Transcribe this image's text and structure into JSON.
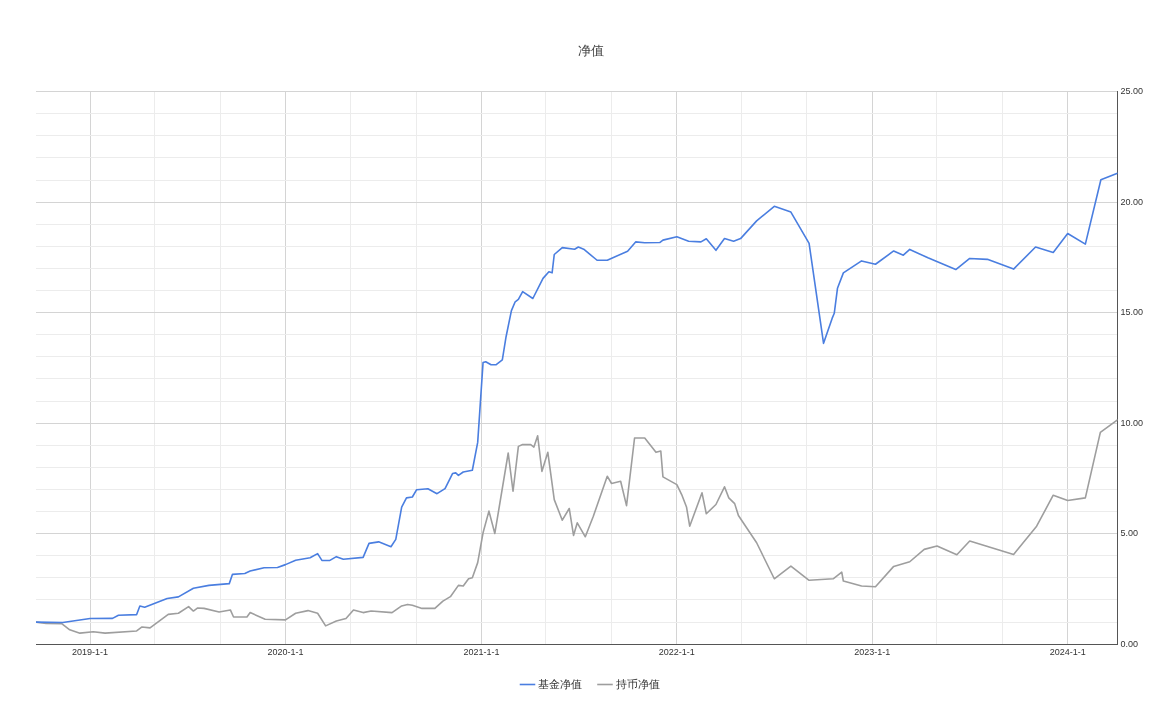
{
  "chart_data": {
    "type": "line",
    "title": "净值",
    "legend": "bottom",
    "grid": true,
    "marker": "none",
    "line_style": "solid",
    "xlim": [
      "2018-09-22",
      "2024-04-03"
    ],
    "xticks": [
      {
        "value": "2019-01-01",
        "label": "2019-1-1"
      },
      {
        "value": "2019-05-01",
        "label": null
      },
      {
        "value": "2019-09-01",
        "label": null
      },
      {
        "value": "2020-01-01",
        "label": "2020-1-1"
      },
      {
        "value": "2020-05-01",
        "label": null
      },
      {
        "value": "2020-09-01",
        "label": null
      },
      {
        "value": "2021-01-01",
        "label": "2021-1-1"
      },
      {
        "value": "2021-05-01",
        "label": null
      },
      {
        "value": "2021-09-01",
        "label": null
      },
      {
        "value": "2022-01-01",
        "label": "2022-1-1"
      },
      {
        "value": "2022-05-01",
        "label": null
      },
      {
        "value": "2022-09-01",
        "label": null
      },
      {
        "value": "2023-01-01",
        "label": "2023-1-1"
      },
      {
        "value": "2023-05-01",
        "label": null
      },
      {
        "value": "2023-09-01",
        "label": null
      },
      {
        "value": "2024-01-01",
        "label": "2024-1-1"
      }
    ],
    "ylim": [
      0,
      25
    ],
    "yticks": [
      {
        "value": 0,
        "label": "0.00"
      },
      {
        "value": 1,
        "label": null
      },
      {
        "value": 2,
        "label": null
      },
      {
        "value": 3,
        "label": null
      },
      {
        "value": 4,
        "label": null
      },
      {
        "value": 5,
        "label": "5.00"
      },
      {
        "value": 6,
        "label": null
      },
      {
        "value": 7,
        "label": null
      },
      {
        "value": 8,
        "label": null
      },
      {
        "value": 9,
        "label": null
      },
      {
        "value": 10,
        "label": "10.00"
      },
      {
        "value": 11,
        "label": null
      },
      {
        "value": 12,
        "label": null
      },
      {
        "value": 13,
        "label": null
      },
      {
        "value": 14,
        "label": null
      },
      {
        "value": 15,
        "label": "15.00"
      },
      {
        "value": 16,
        "label": null
      },
      {
        "value": 17,
        "label": null
      },
      {
        "value": 18,
        "label": null
      },
      {
        "value": 19,
        "label": null
      },
      {
        "value": 20,
        "label": "20.00"
      },
      {
        "value": 21,
        "label": null
      },
      {
        "value": 22,
        "label": null
      },
      {
        "value": 23,
        "label": null
      },
      {
        "value": 24,
        "label": null
      },
      {
        "value": 25,
        "label": "25.00"
      }
    ],
    "series": [
      {
        "name": "基金净值",
        "color": "#4a7ee0",
        "x": [
          "2018-09-22",
          "2018-11-11",
          "2019-01-01",
          "2019-02-12",
          "2019-02-23",
          "2019-03-29",
          "2019-04-04",
          "2019-04-13",
          "2019-05-25",
          "2019-06-15",
          "2019-07-13",
          "2019-08-11",
          "2019-09-18",
          "2019-09-24",
          "2019-10-17",
          "2019-10-27",
          "2019-11-22",
          "2019-12-17",
          "2020-01-01",
          "2020-01-20",
          "2020-02-16",
          "2020-03-01",
          "2020-03-09",
          "2020-03-24",
          "2020-04-05",
          "2020-04-18",
          "2020-05-25",
          "2020-06-05",
          "2020-06-23",
          "2020-07-16",
          "2020-07-25",
          "2020-08-05",
          "2020-08-14",
          "2020-08-25",
          "2020-09-02",
          "2020-09-23",
          "2020-10-10",
          "2020-10-25",
          "2020-11-08",
          "2020-11-14",
          "2020-11-19",
          "2020-11-28",
          "2020-12-15",
          "2020-12-25",
          "2021-01-04",
          "2021-01-09",
          "2021-01-19",
          "2021-01-28",
          "2021-02-09",
          "2021-02-16",
          "2021-02-26",
          "2021-03-05",
          "2021-03-11",
          "2021-03-19",
          "2021-04-07",
          "2021-04-26",
          "2021-05-07",
          "2021-05-13",
          "2021-05-17",
          "2021-06-01",
          "2021-06-24",
          "2021-07-01",
          "2021-07-11",
          "2021-08-05",
          "2021-08-24",
          "2021-10-01",
          "2021-10-16",
          "2021-11-02",
          "2021-11-30",
          "2021-12-06",
          "2022-01-01",
          "2022-01-23",
          "2022-02-15",
          "2022-02-25",
          "2022-03-15",
          "2022-03-31",
          "2022-04-17",
          "2022-04-30",
          "2022-05-30",
          "2022-07-02",
          "2022-08-02",
          "2022-09-05",
          "2022-10-02",
          "2022-10-18",
          "2022-10-22",
          "2022-10-28",
          "2022-11-08",
          "2022-12-12",
          "2023-01-07",
          "2023-02-10",
          "2023-02-28",
          "2023-03-12",
          "2023-04-15",
          "2023-06-06",
          "2023-07-02",
          "2023-08-04",
          "2023-09-22",
          "2023-11-02",
          "2023-12-05",
          "2024-01-01",
          "2024-02-03",
          "2024-03-03",
          "2024-04-03"
        ],
        "values": [
          1.0,
          0.98,
          1.16,
          1.17,
          1.31,
          1.34,
          1.73,
          1.67,
          2.07,
          2.14,
          2.53,
          2.66,
          2.74,
          3.16,
          3.2,
          3.31,
          3.46,
          3.47,
          3.6,
          3.8,
          3.91,
          4.1,
          3.79,
          3.79,
          3.96,
          3.84,
          3.93,
          4.56,
          4.63,
          4.41,
          4.74,
          6.2,
          6.62,
          6.66,
          6.99,
          7.03,
          6.81,
          7.04,
          7.72,
          7.75,
          7.64,
          7.79,
          7.87,
          9.13,
          12.74,
          12.78,
          12.64,
          12.64,
          12.86,
          13.91,
          15.09,
          15.49,
          15.6,
          15.95,
          15.64,
          16.55,
          16.85,
          16.8,
          17.63,
          17.94,
          17.87,
          17.97,
          17.87,
          17.37,
          17.37,
          17.78,
          18.2,
          18.16,
          18.17,
          18.28,
          18.43,
          18.23,
          18.2,
          18.34,
          17.82,
          18.35,
          18.23,
          18.35,
          19.15,
          19.81,
          19.55,
          18.13,
          13.61,
          14.74,
          14.97,
          16.1,
          16.8,
          17.34,
          17.19,
          17.79,
          17.6,
          17.86,
          17.48,
          16.95,
          17.45,
          17.41,
          16.97,
          17.97,
          17.72,
          18.58,
          18.1,
          21.01,
          21.31
        ]
      },
      {
        "name": "持币净值",
        "color": "#9e9e9e",
        "x": [
          "2018-09-22",
          "2018-10-11",
          "2018-11-09",
          "2018-11-24",
          "2018-12-13",
          "2019-01-07",
          "2019-01-29",
          "2019-03-29",
          "2019-04-08",
          "2019-04-23",
          "2019-05-27",
          "2019-06-15",
          "2019-07-04",
          "2019-07-13",
          "2019-07-21",
          "2019-08-02",
          "2019-08-30",
          "2019-09-20",
          "2019-09-26",
          "2019-10-21",
          "2019-10-27",
          "2019-11-24",
          "2020-01-01",
          "2020-01-20",
          "2020-02-12",
          "2020-03-01",
          "2020-03-16",
          "2020-04-05",
          "2020-04-23",
          "2020-05-07",
          "2020-05-25",
          "2020-06-09",
          "2020-07-18",
          "2020-08-05",
          "2020-08-16",
          "2020-08-25",
          "2020-09-12",
          "2020-10-06",
          "2020-10-21",
          "2020-11-04",
          "2020-11-19",
          "2020-11-28",
          "2020-12-08",
          "2020-12-15",
          "2020-12-25",
          "2021-01-04",
          "2021-01-15",
          "2021-01-26",
          "2021-02-20",
          "2021-03-01",
          "2021-03-11",
          "2021-03-19",
          "2021-04-03",
          "2021-04-09",
          "2021-04-16",
          "2021-04-24",
          "2021-05-05",
          "2021-05-17",
          "2021-06-01",
          "2021-06-14",
          "2021-06-22",
          "2021-06-29",
          "2021-07-14",
          "2021-07-29",
          "2021-08-24",
          "2021-09-01",
          "2021-09-18",
          "2021-09-29",
          "2021-10-14",
          "2021-11-02",
          "2021-11-23",
          "2021-12-02",
          "2021-12-06",
          "2022-01-01",
          "2022-01-10",
          "2022-01-19",
          "2022-01-25",
          "2022-02-17",
          "2022-02-25",
          "2022-03-15",
          "2022-03-31",
          "2022-04-08",
          "2022-04-19",
          "2022-04-26",
          "2022-05-30",
          "2022-07-02",
          "2022-08-02",
          "2022-09-05",
          "2022-10-20",
          "2022-11-05",
          "2022-11-08",
          "2022-12-12",
          "2023-01-07",
          "2023-02-10",
          "2023-03-12",
          "2023-04-08",
          "2023-05-02",
          "2023-06-08",
          "2023-07-02",
          "2023-09-22",
          "2023-11-04",
          "2023-12-05",
          "2024-01-01",
          "2024-02-03",
          "2024-03-02",
          "2024-04-03"
        ],
        "values": [
          1.0,
          0.94,
          0.93,
          0.65,
          0.5,
          0.56,
          0.5,
          0.6,
          0.78,
          0.74,
          1.35,
          1.4,
          1.7,
          1.5,
          1.64,
          1.62,
          1.46,
          1.55,
          1.23,
          1.23,
          1.43,
          1.13,
          1.1,
          1.4,
          1.52,
          1.4,
          0.83,
          1.05,
          1.16,
          1.55,
          1.43,
          1.5,
          1.43,
          1.73,
          1.8,
          1.76,
          1.62,
          1.62,
          1.95,
          2.15,
          2.66,
          2.63,
          2.96,
          3.01,
          3.69,
          5.04,
          6.02,
          5.01,
          8.65,
          6.92,
          8.95,
          9.03,
          9.03,
          8.92,
          9.43,
          7.82,
          8.68,
          6.54,
          5.61,
          6.14,
          4.92,
          5.49,
          4.86,
          5.79,
          7.6,
          7.27,
          7.37,
          6.27,
          9.33,
          9.33,
          8.68,
          8.74,
          7.57,
          7.22,
          6.77,
          6.21,
          5.34,
          6.85,
          5.9,
          6.32,
          7.12,
          6.62,
          6.36,
          5.82,
          4.59,
          2.96,
          3.53,
          2.89,
          2.96,
          3.26,
          2.86,
          2.63,
          2.6,
          3.52,
          3.73,
          4.29,
          4.44,
          4.05,
          4.67,
          4.06,
          5.34,
          6.74,
          6.5,
          6.62,
          9.58,
          10.15
        ]
      }
    ]
  }
}
